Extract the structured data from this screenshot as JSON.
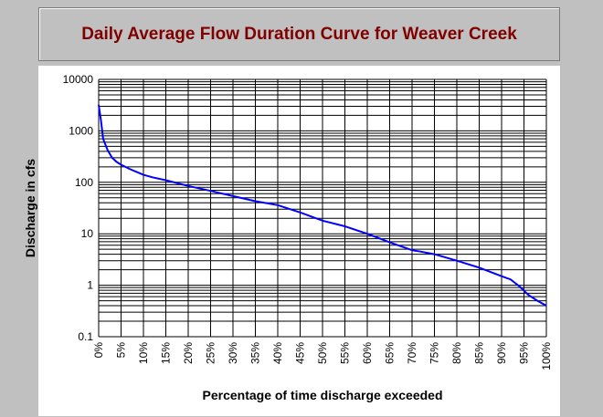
{
  "chart_data": {
    "type": "line",
    "title": "Daily Average Flow Duration Curve for Weaver Creek",
    "xlabel": "Percentage of time discharge exceeded",
    "ylabel": "Discharge in cfs",
    "x_ticks": [
      0,
      5,
      10,
      15,
      20,
      25,
      30,
      35,
      40,
      45,
      50,
      55,
      60,
      65,
      70,
      75,
      80,
      85,
      90,
      95,
      100
    ],
    "x_tick_labels": [
      "0%",
      "5%",
      "10%",
      "15%",
      "20%",
      "25%",
      "30%",
      "35%",
      "40%",
      "45%",
      "50%",
      "55%",
      "60%",
      "65%",
      "70%",
      "75%",
      "80%",
      "85%",
      "90%",
      "95%",
      "100%"
    ],
    "y_ticks": [
      0.1,
      1,
      10,
      100,
      1000,
      10000
    ],
    "y_tick_labels": [
      "0.1",
      "1",
      "10",
      "100",
      "1000",
      "10000"
    ],
    "xlim": [
      0,
      100
    ],
    "ylim": [
      0.1,
      10000
    ],
    "yscale": "log",
    "grid": true,
    "legend": "none",
    "series": [
      {
        "color": "#0000ff",
        "x": [
          0,
          0.5,
          1,
          2,
          3,
          4,
          5,
          7,
          10,
          12,
          15,
          20,
          25,
          30,
          35,
          40,
          45,
          50,
          55,
          60,
          65,
          70,
          72,
          75,
          80,
          85,
          90,
          92,
          94,
          96,
          98,
          100
        ],
        "y": [
          3200,
          1600,
          700,
          420,
          300,
          250,
          220,
          180,
          140,
          125,
          110,
          85,
          68,
          54,
          43,
          36,
          26,
          18,
          14,
          10,
          6.8,
          4.8,
          4.5,
          4,
          3,
          2.2,
          1.5,
          1.3,
          0.95,
          0.65,
          0.5,
          0.4
        ]
      }
    ]
  },
  "colors": {
    "background": "#c0c0c0",
    "plot_area": "#ffffff",
    "title_text": "#800000",
    "line": "#0000ff",
    "grid": "#000000"
  }
}
